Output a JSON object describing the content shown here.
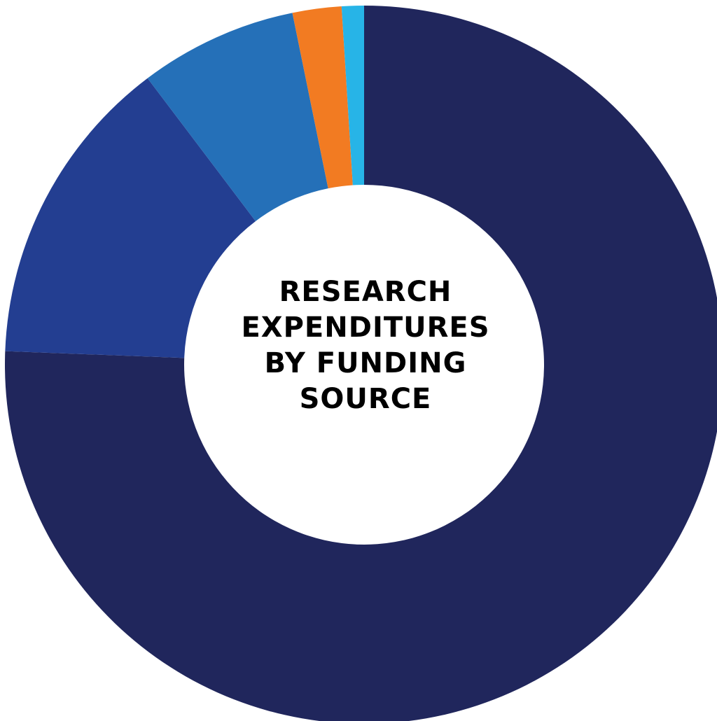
{
  "chart_data": {
    "type": "pie",
    "title_lines": [
      "RESEARCH",
      "EXPENDITURES",
      "BY FUNDING",
      "SOURCE"
    ],
    "slices": [
      {
        "value": 75.6,
        "color": "#20265C"
      },
      {
        "value": 14.1,
        "color": "#233E91"
      },
      {
        "value": 7.1,
        "color": "#2570B8"
      },
      {
        "value": 2.2,
        "color": "#F27B22"
      },
      {
        "value": 1.0,
        "color": "#27B4E7"
      }
    ],
    "donut": true,
    "legend": "none",
    "grid": false
  }
}
